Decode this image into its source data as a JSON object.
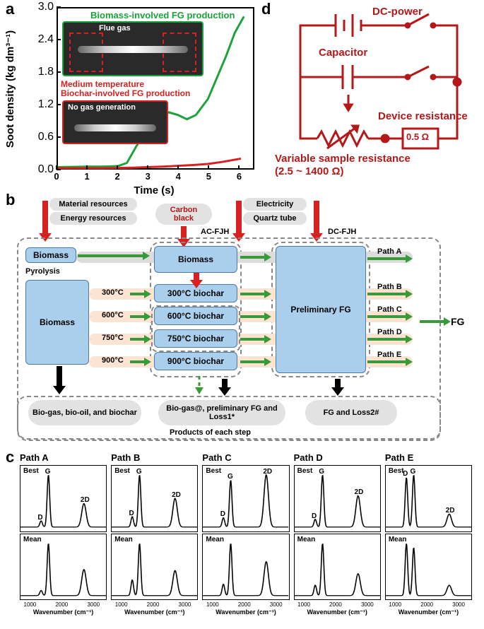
{
  "panel_labels": {
    "a": "a",
    "b": "b",
    "c": "c",
    "d": "d"
  },
  "chart_a": {
    "type": "line",
    "x_label": "Time (s)",
    "y_label": "Soot density (kg dm³⁻¹)",
    "xlim": [
      0,
      6.5
    ],
    "ylim": [
      0,
      3.0
    ],
    "xticks": [
      0,
      1,
      2,
      3,
      4,
      5,
      6
    ],
    "yticks": [
      "0.0",
      "0.6",
      "1.2",
      "1.8",
      "2.4",
      "3.0"
    ],
    "series": [
      {
        "name": "biomass",
        "label": "Biomass-involved FG production",
        "color": "#1aa33a",
        "width": 3,
        "points": [
          [
            0,
            0.02
          ],
          [
            1.0,
            0.03
          ],
          [
            1.5,
            0.03
          ],
          [
            2.0,
            0.04
          ],
          [
            2.3,
            0.1
          ],
          [
            2.6,
            0.4
          ],
          [
            3.0,
            0.75
          ],
          [
            3.4,
            0.95
          ],
          [
            3.7,
            1.05
          ],
          [
            4.0,
            1.0
          ],
          [
            4.3,
            0.92
          ],
          [
            4.6,
            1.0
          ],
          [
            5.0,
            1.3
          ],
          [
            5.3,
            1.7
          ],
          [
            5.6,
            2.1
          ],
          [
            5.9,
            2.55
          ],
          [
            6.2,
            2.85
          ]
        ]
      },
      {
        "name": "biochar",
        "label": "Medium temperature",
        "label2": "Biochar-involved FG production",
        "color": "#d92020",
        "width": 3,
        "points": [
          [
            0,
            0.0
          ],
          [
            1.5,
            0.0
          ],
          [
            2.5,
            0.01
          ],
          [
            3.5,
            0.03
          ],
          [
            4.5,
            0.06
          ],
          [
            5.0,
            0.08
          ],
          [
            5.5,
            0.12
          ],
          [
            6.1,
            0.18
          ]
        ]
      }
    ],
    "insets": {
      "green": {
        "text": "Flue gas"
      },
      "red": {
        "text": "No gas generation"
      }
    }
  },
  "circuit_d": {
    "color": "#b51818",
    "dc_power": "DC-power",
    "capacitor": "Capacitor",
    "device_res": "Device resistance",
    "device_value": "0.5 Ω",
    "variable_res": "Variable sample resistance",
    "variable_range": "(2.5 ~ 1400 Ω)"
  },
  "flow_b": {
    "top_ovals": {
      "mat": "Material resources",
      "energy": "Energy resources",
      "carbon": "Carbon black",
      "elec": "Electricity",
      "quartz": "Quartz tube"
    },
    "stage_labels": {
      "ac": "AC-FJH",
      "dc": "DC-FJH"
    },
    "pyrolysis": "Pyrolysis",
    "biomass": "Biomass",
    "temps": [
      "300°C",
      "600°C",
      "750°C",
      "900°C"
    ],
    "biochar": [
      "300°C biochar",
      "600°C biochar",
      "750°C biochar",
      "900°C biochar"
    ],
    "prelim": "Preliminary FG",
    "paths": [
      "Path A",
      "Path B",
      "Path C",
      "Path D",
      "Path E"
    ],
    "fg_out": "FG",
    "bottom_ovals": {
      "left": "Bio-gas, bio-oil, and biochar",
      "mid": "Bio-gas@, preliminary FG and Loss1*",
      "right": "FG and Loss2#"
    },
    "products_label": "Products of each step"
  },
  "raman_c": {
    "xlabel": "Wavenumber (cm⁻¹)",
    "xticks": [
      1000,
      2000,
      3000
    ],
    "peaks": {
      "D": "D",
      "G": "G",
      "TwoD": "2D"
    },
    "rows": {
      "best": "Best",
      "mean": "Mean"
    },
    "paths": [
      {
        "title": "Path A",
        "best": {
          "D": 0.12,
          "G": 1.0,
          "TwoD": 0.45
        },
        "mean": {
          "D": 0.1,
          "G": 1.0,
          "TwoD": 0.5
        }
      },
      {
        "title": "Path B",
        "best": {
          "D": 0.2,
          "G": 1.0,
          "TwoD": 0.55
        },
        "mean": {
          "D": 0.3,
          "G": 1.0,
          "TwoD": 0.48
        }
      },
      {
        "title": "Path C",
        "best": {
          "D": 0.18,
          "G": 0.9,
          "TwoD": 1.0
        },
        "mean": {
          "D": 0.22,
          "G": 1.0,
          "TwoD": 0.65
        }
      },
      {
        "title": "Path D",
        "best": {
          "D": 0.15,
          "G": 1.0,
          "TwoD": 0.6
        },
        "mean": {
          "D": 0.2,
          "G": 1.0,
          "TwoD": 0.42
        }
      },
      {
        "title": "Path E",
        "best": {
          "D": 0.95,
          "G": 1.0,
          "TwoD": 0.25
        },
        "mean": {
          "D": 1.0,
          "G": 0.92,
          "TwoD": 0.2
        }
      }
    ],
    "line_color": "#000000",
    "line_width": 1.3
  }
}
